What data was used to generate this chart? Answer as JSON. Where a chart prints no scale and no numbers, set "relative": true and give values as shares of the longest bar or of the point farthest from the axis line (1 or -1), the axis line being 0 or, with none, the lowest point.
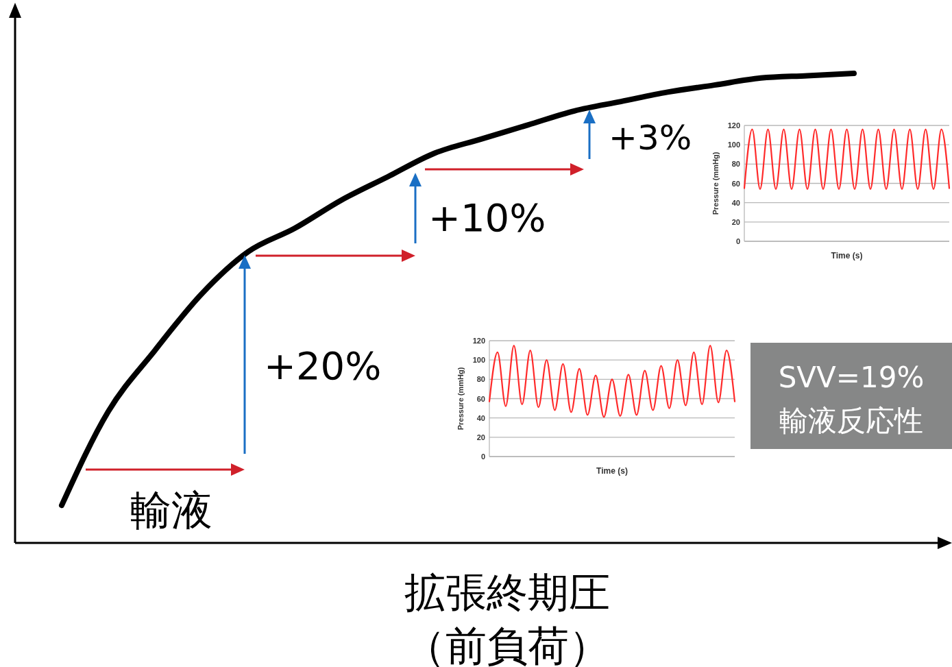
{
  "chart_data": [
    {
      "type": "line",
      "relative": true,
      "xlabel": "拡張終期圧（前負荷）",
      "categories": [
        null,
        null,
        null,
        null,
        null,
        null,
        null,
        null,
        null,
        null,
        null,
        null,
        null,
        null,
        null,
        null,
        null,
        null,
        null,
        null,
        null
      ],
      "series": [
        {
          "color": "#000000",
          "values": [
            null,
            0.08,
            0.28,
            0.41,
            0.53,
            0.62,
            0.67,
            0.73,
            0.78,
            0.83,
            0.86,
            0.89,
            0.92,
            0.94,
            0.96,
            0.975,
            0.99,
            0.995,
            1,
            null,
            null
          ]
        }
      ],
      "annotations": [
        "+20%",
        "+10%",
        "+3%",
        "輸液",
        "SVV=19%",
        "輸液反応性"
      ]
    },
    {
      "type": "line",
      "ylabel": "Pressure (mmHg)",
      "xlabel": "Time (s)",
      "ylim": [
        0,
        120
      ],
      "yticks": [
        0,
        20,
        40,
        60,
        80,
        100,
        120
      ],
      "grid": "y",
      "categories": [
        null,
        null,
        null,
        null,
        null,
        null,
        null,
        null,
        null,
        null,
        null,
        null,
        null,
        null,
        null,
        null,
        null,
        null,
        null,
        null,
        null,
        null,
        null,
        null,
        null,
        null,
        null
      ],
      "series": [
        {
          "color": "#ff2a2a",
          "values": [
            55,
            116,
            54,
            116,
            54,
            116,
            54,
            116,
            54,
            116,
            54,
            116,
            54,
            116,
            54,
            116,
            54,
            116,
            54,
            116,
            54,
            116,
            54,
            116,
            54,
            116,
            55
          ]
        }
      ]
    },
    {
      "type": "line",
      "ylabel": "Pressure (mmHg)",
      "xlabel": "Time (s)",
      "ylim": [
        0,
        120
      ],
      "yticks": [
        0,
        20,
        40,
        60,
        80,
        100,
        120
      ],
      "grid": "y",
      "categories": [
        null,
        null,
        null,
        null,
        null,
        null,
        null,
        null,
        null,
        null,
        null,
        null,
        null,
        null,
        null,
        null,
        null,
        null,
        null,
        null,
        null,
        null,
        null,
        null,
        null,
        null,
        null,
        null,
        null,
        null,
        null
      ],
      "series": [
        {
          "color": "#ff2a2a",
          "values": [
            57,
            108,
            52,
            115,
            54,
            110,
            51,
            100,
            48,
            96,
            46,
            91,
            43,
            84,
            41,
            80,
            42,
            85,
            43,
            89,
            48,
            94,
            50,
            100,
            53,
            108,
            54,
            115,
            56,
            110,
            57
          ]
        }
      ]
    }
  ]
}
